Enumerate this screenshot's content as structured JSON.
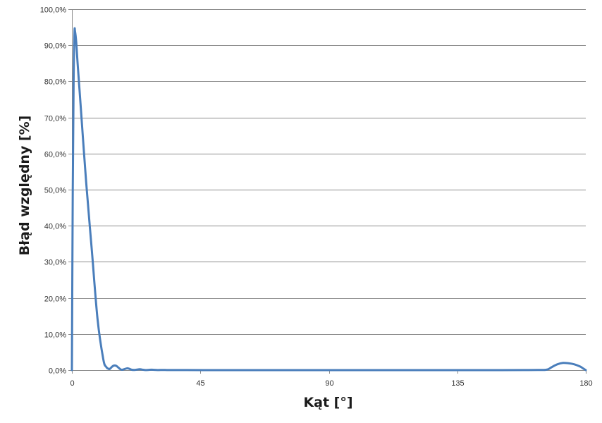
{
  "chart_data": {
    "type": "line",
    "title": "",
    "xlabel": "Kąt [°]",
    "ylabel": "Błąd względny [%]",
    "xlim": [
      0,
      180
    ],
    "ylim": [
      0,
      100
    ],
    "x_ticks": [
      0,
      45,
      90,
      135,
      180
    ],
    "x_tick_labels": [
      "0",
      "45",
      "90",
      "135",
      "180"
    ],
    "y_ticks": [
      0,
      10,
      20,
      30,
      40,
      50,
      60,
      70,
      80,
      90,
      100
    ],
    "y_tick_labels": [
      "0,0%",
      "10,0%",
      "20,0%",
      "30,0%",
      "40,0%",
      "50,0%",
      "60,0%",
      "70,0%",
      "80,0%",
      "90,0%",
      "100,0%"
    ],
    "grid": true,
    "legend": "none",
    "series": [
      {
        "color": "#4a7ebb",
        "x": [
          0,
          0.3,
          0.6,
          0.9,
          1.1,
          1.5,
          2,
          3,
          5,
          7,
          9,
          11,
          12,
          13,
          13.5,
          14,
          14.5,
          15,
          15.5,
          16,
          16.8,
          17.5,
          18.5,
          19.3,
          20,
          21,
          22,
          22.8,
          23.8,
          25,
          26,
          27,
          28,
          30,
          32,
          34,
          40,
          50,
          60,
          90,
          120,
          150,
          160,
          165,
          166,
          167,
          168,
          170,
          172,
          174,
          176,
          178,
          179,
          180
        ],
        "y": [
          0,
          50,
          80,
          93.5,
          93.8,
          91,
          85,
          74,
          52,
          33,
          14,
          3,
          0.9,
          0.3,
          0.5,
          0.9,
          1.2,
          1.3,
          1.2,
          0.9,
          0.35,
          0.1,
          0.3,
          0.5,
          0.4,
          0.1,
          0.05,
          0.15,
          0.25,
          0.1,
          0.02,
          0.08,
          0.12,
          0.03,
          0.06,
          0.02,
          0.02,
          0,
          0,
          0,
          0,
          0,
          0.02,
          0.05,
          0.1,
          0.3,
          0.8,
          1.6,
          2,
          1.9,
          1.6,
          1,
          0.5,
          0
        ]
      }
    ]
  }
}
